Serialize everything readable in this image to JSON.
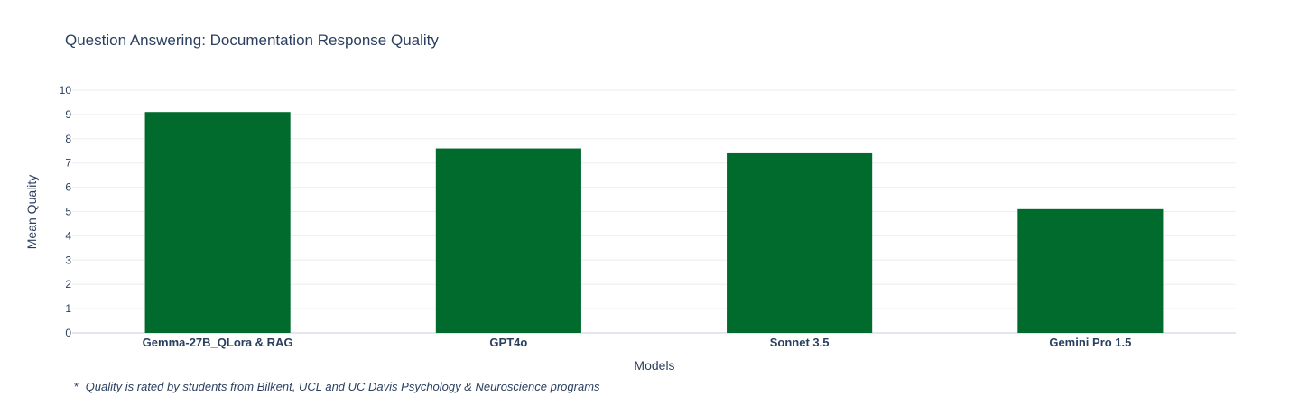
{
  "colors": {
    "bar": "#006b2d",
    "text": "#2a3f5f",
    "grid": "#eeeeee",
    "zeroline": "#e3e6eb"
  },
  "chart_data": {
    "type": "bar",
    "title": "Question Answering: Documentation Response Quality",
    "xlabel": "Models",
    "ylabel": "Mean Quality",
    "categories": [
      "Gemma-27B_QLora & RAG",
      "GPT4o",
      "Sonnet 3.5",
      "Gemini Pro 1.5"
    ],
    "values": [
      9.1,
      7.6,
      7.4,
      5.1
    ],
    "ylim": [
      0,
      10
    ],
    "yticks": [
      "0",
      "1",
      "2",
      "3",
      "4",
      "5",
      "6",
      "7",
      "8",
      "9",
      "10"
    ],
    "grid": true,
    "annotation": {
      "marker": "*",
      "text": "Quality is rated by students from Bilkent, UCL and UC Davis Psychology & Neuroscience programs"
    }
  }
}
